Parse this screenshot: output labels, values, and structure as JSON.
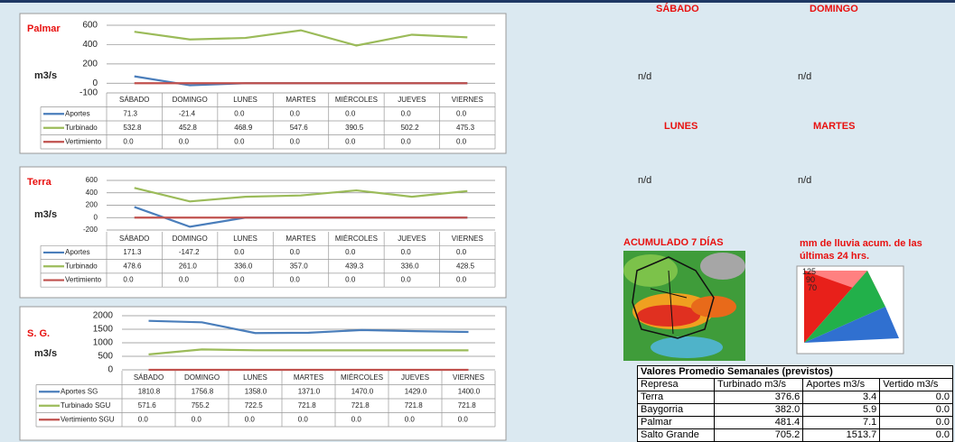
{
  "chart_data": [
    {
      "type": "line",
      "title": "Palmar",
      "y_label": "m3/s",
      "categories": [
        "SÁBADO",
        "DOMINGO",
        "LUNES",
        "MARTES",
        "MIÉRCOLES",
        "JUEVES",
        "VIERNES"
      ],
      "ylim": [
        -100,
        600
      ],
      "yticks": [
        -100,
        0,
        200,
        400,
        600
      ],
      "grid": true,
      "series": [
        {
          "name": "Aportes",
          "color": "#4a7ebb",
          "values": [
            71.3,
            -21.4,
            0,
            0,
            0,
            0,
            0
          ],
          "value_labels": [
            "71.3",
            "-21.4",
            "0.0",
            "0.0",
            "0.0",
            "0.0",
            "0.0"
          ]
        },
        {
          "name": "Turbinado",
          "color": "#9bbb59",
          "values": [
            532.8,
            452.8,
            468.9,
            547.6,
            390.5,
            502.2,
            475.3
          ],
          "value_labels": [
            "532.8",
            "452.8",
            "468.9",
            "547.6",
            "390.5",
            "502.2",
            "475.3"
          ]
        },
        {
          "name": "Vertimiento",
          "color": "#c0504d",
          "values": [
            0,
            0,
            0,
            0,
            0,
            0,
            0
          ],
          "value_labels": [
            "0.0",
            "0.0",
            "0.0",
            "0.0",
            "0.0",
            "0.0",
            "0.0"
          ]
        }
      ]
    },
    {
      "type": "line",
      "title": "Terra",
      "y_label": "m3/s",
      "categories": [
        "SÁBADO",
        "DOMINGO",
        "LUNES",
        "MARTES",
        "MIÉRCOLES",
        "JUEVES",
        "VIERNES"
      ],
      "ylim": [
        -200,
        600
      ],
      "yticks": [
        -200,
        0,
        200,
        400,
        600
      ],
      "grid": true,
      "series": [
        {
          "name": "Aportes",
          "color": "#4a7ebb",
          "values": [
            171.3,
            -147.2,
            0,
            0,
            0,
            0,
            0
          ],
          "value_labels": [
            "171.3",
            "-147.2",
            "0.0",
            "0.0",
            "0.0",
            "0.0",
            "0.0"
          ]
        },
        {
          "name": "Turbinado",
          "color": "#9bbb59",
          "values": [
            478.6,
            261,
            336,
            357,
            439.3,
            336,
            428.5
          ],
          "value_labels": [
            "478.6",
            "261.0",
            "336.0",
            "357.0",
            "439.3",
            "336.0",
            "428.5"
          ]
        },
        {
          "name": "Vertimiento",
          "color": "#c0504d",
          "values": [
            0,
            0,
            0,
            0,
            0,
            0,
            0
          ],
          "value_labels": [
            "0.0",
            "0.0",
            "0.0",
            "0.0",
            "0.0",
            "0.0",
            "0.0"
          ]
        }
      ]
    },
    {
      "type": "line",
      "title": "S. G.",
      "y_label": "m3/s",
      "categories": [
        "SÁBADO",
        "DOMINGO",
        "LUNES",
        "MARTES",
        "MIÉRCOLES",
        "JUEVES",
        "VIERNES"
      ],
      "ylim": [
        0,
        2000
      ],
      "yticks": [
        0,
        500,
        1000,
        1500,
        2000
      ],
      "grid": true,
      "series": [
        {
          "name": "Aportes SG",
          "color": "#4a7ebb",
          "values": [
            1810.8,
            1756.8,
            1358,
            1371,
            1470,
            1429,
            1400
          ],
          "value_labels": [
            "1810.8",
            "1756.8",
            "1358.0",
            "1371.0",
            "1470.0",
            "1429.0",
            "1400.0"
          ]
        },
        {
          "name": "Turbinado SGU",
          "color": "#9bbb59",
          "values": [
            571.6,
            755.2,
            722.5,
            721.8,
            721.8,
            721.8,
            721.8
          ],
          "value_labels": [
            "571.6",
            "755.2",
            "722.5",
            "721.8",
            "721.8",
            "721.8",
            "721.8"
          ]
        },
        {
          "name": "Vertimiento SGU",
          "color": "#c0504d",
          "values": [
            0,
            0,
            0,
            0,
            0,
            0,
            0
          ],
          "value_labels": [
            "0.0",
            "0.0",
            "0.0",
            "0.0",
            "0.0",
            "0.0",
            "0.0"
          ]
        }
      ]
    }
  ],
  "forecast": {
    "days": [
      "SÁBADO",
      "DOMINGO",
      "LUNES",
      "MARTES"
    ],
    "status": [
      "n/d",
      "n/d",
      "n/d",
      "n/d"
    ],
    "map_title": "ACUMULADO 7 DÍAS",
    "legend_title": "mm de lluvia acum. de las últimas 24 hrs.",
    "legend_labels": [
      "125",
      "90",
      "70"
    ]
  },
  "table": {
    "title": "Valores Promedio Semanales (previstos)",
    "header": [
      "Represa",
      "Turbinado m3/s",
      "Aportes m3/s",
      "Vertido m3/s"
    ],
    "rows": [
      [
        "Terra",
        "376.6",
        "3.4",
        "0.0"
      ],
      [
        "Baygorria",
        "382.0",
        "5.9",
        "0.0"
      ],
      [
        "Palmar",
        "481.4",
        "7.1",
        "0.0"
      ],
      [
        "Salto Grande",
        "705.2",
        "1513.7",
        "0.0"
      ]
    ]
  }
}
